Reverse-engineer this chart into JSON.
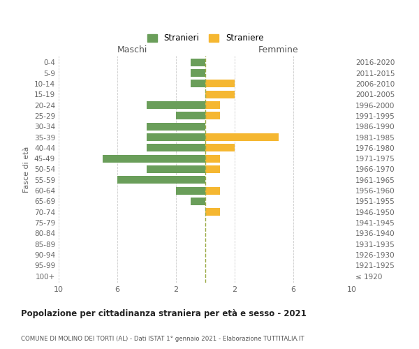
{
  "age_groups": [
    "100+",
    "95-99",
    "90-94",
    "85-89",
    "80-84",
    "75-79",
    "70-74",
    "65-69",
    "60-64",
    "55-59",
    "50-54",
    "45-49",
    "40-44",
    "35-39",
    "30-34",
    "25-29",
    "20-24",
    "15-19",
    "10-14",
    "5-9",
    "0-4"
  ],
  "birth_years": [
    "≤ 1920",
    "1921-1925",
    "1926-1930",
    "1931-1935",
    "1936-1940",
    "1941-1945",
    "1946-1950",
    "1951-1955",
    "1956-1960",
    "1961-1965",
    "1966-1970",
    "1971-1975",
    "1976-1980",
    "1981-1985",
    "1986-1990",
    "1991-1995",
    "1996-2000",
    "2001-2005",
    "2006-2010",
    "2011-2015",
    "2016-2020"
  ],
  "males": [
    0,
    0,
    0,
    0,
    0,
    0,
    0,
    1,
    2,
    6,
    4,
    7,
    4,
    4,
    4,
    2,
    4,
    0,
    1,
    1,
    1
  ],
  "females": [
    0,
    0,
    0,
    0,
    0,
    0,
    1,
    0,
    1,
    0,
    1,
    1,
    2,
    5,
    0,
    1,
    1,
    2,
    2,
    0,
    0
  ],
  "male_color": "#6a9e5a",
  "female_color": "#f5b731",
  "dashed_line_color": "#9aaa44",
  "background_color": "#ffffff",
  "grid_color": "#cccccc",
  "title": "Popolazione per cittadinanza straniera per età e sesso - 2021",
  "subtitle": "COMUNE DI MOLINO DEI TORTI (AL) - Dati ISTAT 1° gennaio 2021 - Elaborazione TUTTITALIA.IT",
  "ylabel_left": "Fasce di età",
  "header_left": "Maschi",
  "header_right": "Femmine",
  "legend_male": "Stranieri",
  "legend_female": "Straniere",
  "xlim": 10,
  "bar_height": 0.72
}
